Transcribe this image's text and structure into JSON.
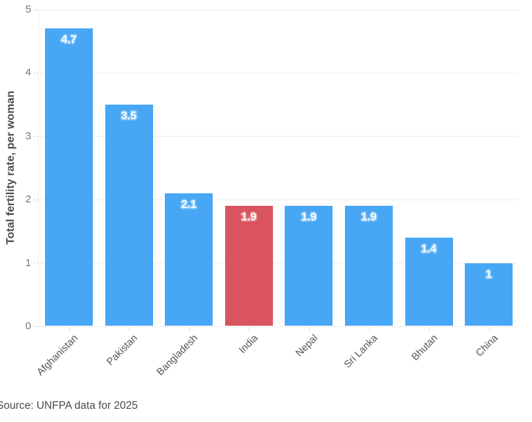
{
  "chart_data": {
    "type": "bar",
    "title": "",
    "categories": [
      "Afghanistan",
      "Pakistan",
      "Bangladesh",
      "India",
      "Nepal",
      "Sri Lanka",
      "Bhutan",
      "China"
    ],
    "values": [
      4.7,
      3.5,
      2.1,
      1.9,
      1.9,
      1.9,
      1.4,
      1
    ],
    "value_labels": [
      "4.7",
      "3.5",
      "2.1",
      "1.9",
      "1.9",
      "1.9",
      "1.4",
      "1"
    ],
    "highlight_category": "India",
    "xlabel": "",
    "ylabel": "Total fertility rate, per woman",
    "ylim": [
      0,
      5
    ],
    "yticks": [
      0,
      1,
      2,
      3,
      4,
      5
    ],
    "grid": "horizontal-light",
    "legend": "none",
    "colors": {
      "bar": "#47a7f5",
      "bar_halo": "#85c5f8",
      "highlight": "#d9545e",
      "highlight_halo": "#e68a92",
      "gridline": "#ececec",
      "axis_text": "#757575"
    },
    "source": "Source: UNFPA data for 2025"
  }
}
